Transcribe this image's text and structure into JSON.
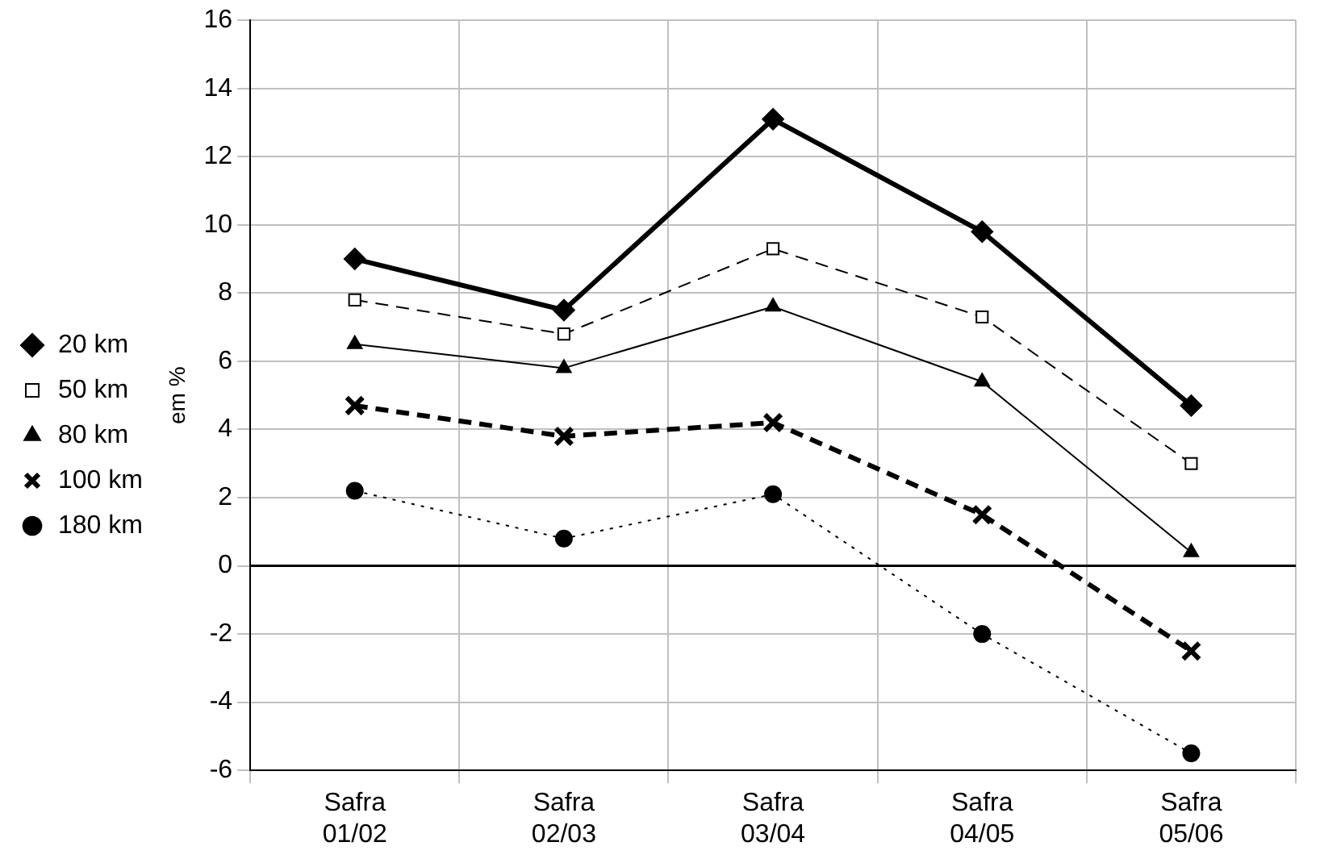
{
  "chart_data": {
    "type": "line",
    "ylabel": "em %",
    "categories": [
      "Safra 01/02",
      "Safra 02/03",
      "Safra 03/04",
      "Safra 04/05",
      "Safra 05/06"
    ],
    "series": [
      {
        "name": "20 km",
        "color": "#000000",
        "marker": "diamond",
        "line_style": "solid",
        "values": [
          9.0,
          7.5,
          13.1,
          9.8,
          4.7
        ]
      },
      {
        "name": "50 km",
        "color": "#000000",
        "marker": "square",
        "line_style": "dashed",
        "values": [
          7.8,
          6.8,
          9.3,
          7.3,
          3.0
        ]
      },
      {
        "name": "80 km",
        "color": "#000000",
        "marker": "triangle",
        "line_style": "solid",
        "values": [
          6.5,
          5.8,
          7.6,
          5.4,
          0.4
        ]
      },
      {
        "name": "100 km",
        "color": "#000000",
        "marker": "cross",
        "line_style": "dashed",
        "values": [
          4.7,
          3.8,
          4.2,
          1.5,
          -2.5
        ]
      },
      {
        "name": "180 km",
        "color": "#000000",
        "marker": "circle",
        "line_style": "dotted",
        "values": [
          2.2,
          0.8,
          2.1,
          -2.0,
          -5.5
        ]
      }
    ],
    "ylim": [
      -6,
      16
    ],
    "yticks": [
      -6,
      -4,
      -2,
      0,
      2,
      4,
      6,
      8,
      10,
      12,
      14,
      16
    ],
    "grid": true,
    "legend": "left",
    "ref_lines": [
      {
        "axis": "y",
        "value": 0,
        "color": "#000000"
      }
    ]
  }
}
